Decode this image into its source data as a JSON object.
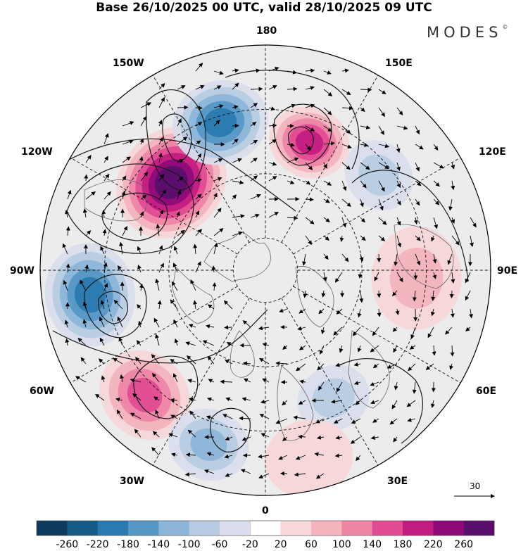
{
  "title": "Base 26/10/2025 00 UTC, valid 28/10/2025 09 UTC",
  "brand": "MODES",
  "brand_mark": "©",
  "longitude_labels": {
    "top": "180",
    "bottom": "0",
    "left": "90W",
    "right": "90E",
    "upper_left_150": "150W",
    "upper_right_150": "150E",
    "left_120": "120W",
    "right_120": "120E",
    "lower_left_60": "60W",
    "lower_right_60": "60E",
    "bottom_left_30": "30W",
    "bottom_right_30": "30E"
  },
  "reference_vector": {
    "value": "30"
  },
  "colorbar": {
    "colors": [
      "#0f3b5e",
      "#145b87",
      "#2a79b0",
      "#5697c6",
      "#8cb5d8",
      "#b7cbe3",
      "#d9dded",
      "#ffffff",
      "#f8d7d9",
      "#f3b4bd",
      "#ee86a6",
      "#e14c94",
      "#c31c81",
      "#8e0b78",
      "#5a0f6c"
    ],
    "ticks": [
      "-260",
      "-220",
      "-180",
      "-140",
      "-100",
      "-60",
      "-20",
      "20",
      "60",
      "100",
      "140",
      "180",
      "220",
      "260"
    ]
  },
  "anomaly_centers": [
    {
      "name": "alaska-high",
      "lon_deg": -133,
      "colat_deg": 40,
      "value": 250,
      "radius_deg": 16
    },
    {
      "name": "bering-low",
      "lon_deg": -163,
      "colat_deg": 48,
      "value": -190,
      "radius_deg": 13
    },
    {
      "name": "siberia-high",
      "lon_deg": 161,
      "colat_deg": 42,
      "value": 180,
      "radius_deg": 11
    },
    {
      "name": "kamchatka-low",
      "lon_deg": 130,
      "colat_deg": 46,
      "value": -80,
      "radius_deg": 10
    },
    {
      "name": "hudson-low",
      "lon_deg": -82,
      "colat_deg": 55,
      "value": -200,
      "radius_deg": 14
    },
    {
      "name": "atlantic-high",
      "lon_deg": -44,
      "colat_deg": 54,
      "value": 160,
      "radius_deg": 13
    },
    {
      "name": "east-atlantic-low",
      "lon_deg": -18,
      "colat_deg": 57,
      "value": -120,
      "radius_deg": 11
    },
    {
      "name": "siberia-plain-high",
      "lon_deg": 87,
      "colat_deg": 47,
      "value": 60,
      "radius_deg": 14
    },
    {
      "name": "scandinavia-low",
      "lon_deg": 28,
      "colat_deg": 45,
      "value": -60,
      "radius_deg": 10
    },
    {
      "name": "europe-high",
      "lon_deg": 13,
      "colat_deg": 60,
      "value": 40,
      "radius_deg": 12
    }
  ]
}
